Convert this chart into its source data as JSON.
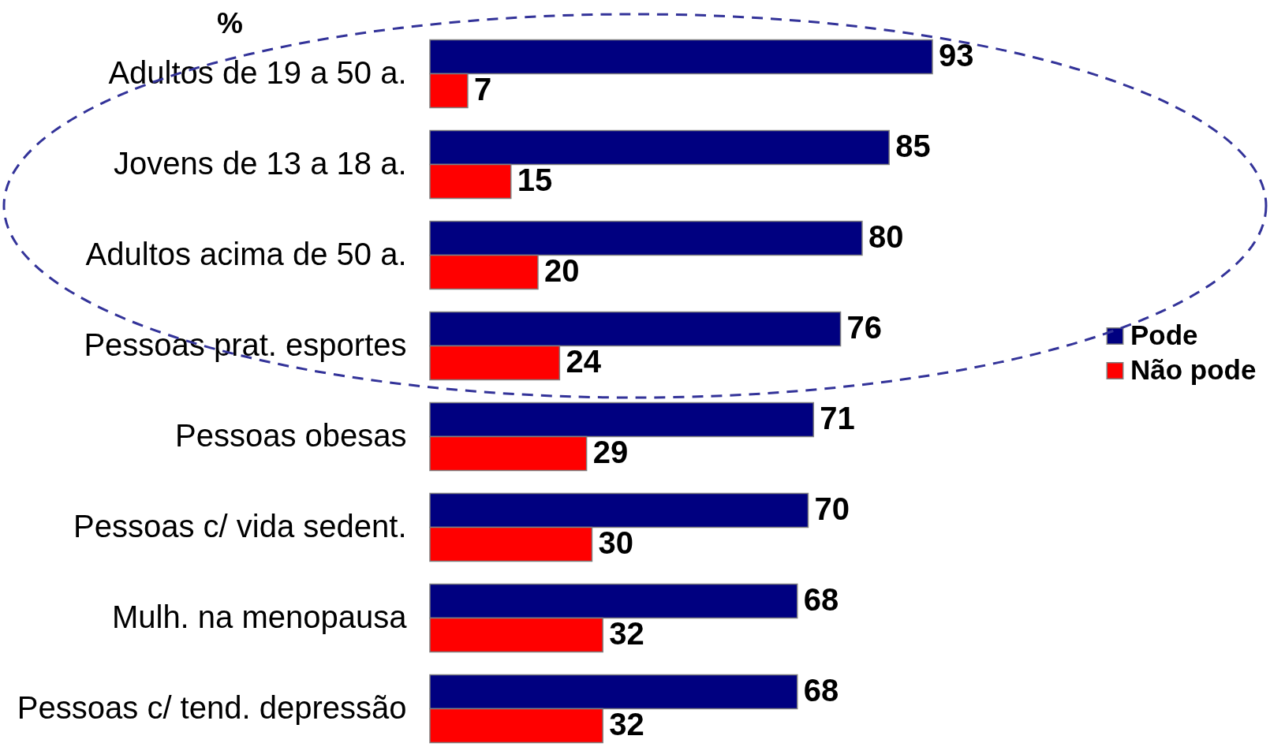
{
  "chart_data": {
    "type": "bar",
    "orientation": "horizontal",
    "title": "%",
    "categories": [
      "Adultos de 19 a 50 a.",
      "Jovens de 13 a 18 a.",
      "Adultos acima de 50 a.",
      "Pessoas prat. esportes",
      "Pessoas obesas",
      "Pessoas c/ vida sedent.",
      "Mulh. na menopausa",
      "Pessoas c/ tend. depressão"
    ],
    "series": [
      {
        "name": "Pode",
        "color": "#000080",
        "values": [
          93,
          85,
          80,
          76,
          71,
          70,
          68,
          68
        ]
      },
      {
        "name": "Não pode",
        "color": "#ff0000",
        "values": [
          7,
          15,
          20,
          24,
          29,
          30,
          32,
          32
        ]
      }
    ],
    "data_labels": true,
    "legend": "right"
  }
}
